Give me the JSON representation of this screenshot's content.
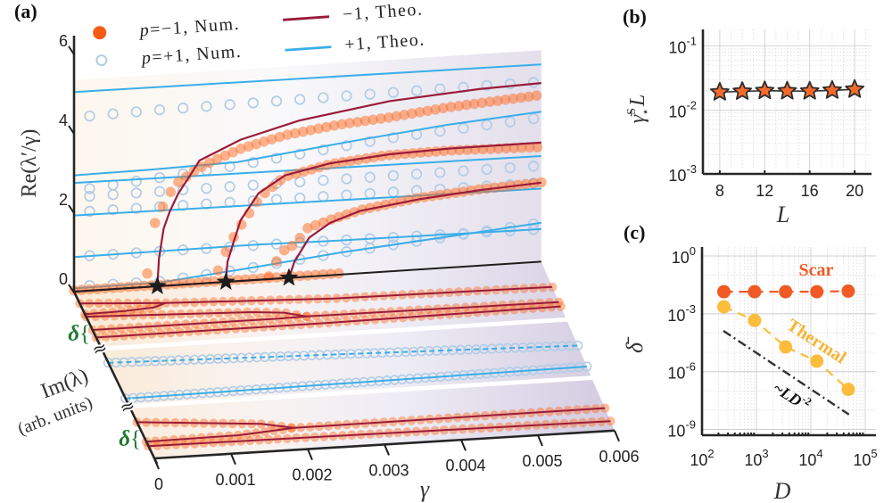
{
  "figure": {
    "panel_labels": {
      "a": "(a)",
      "b": "(b)",
      "c": "(c)"
    },
    "colors": {
      "p_minus_num": "#ff6a1f",
      "p_minus_num_legend": "#fb5a14",
      "p_plus_num": "#b3cce6",
      "p_minus_theo": "#9b1b3a",
      "p_plus_theo": "#3aaee8",
      "exceptional_point": "#1c1c1c",
      "delta": "#1f7a32",
      "star_fill": "#f36b2b",
      "scar": "#f15a24",
      "thermal": "#fbbd3b",
      "reference": "#333333"
    },
    "legend": {
      "num_minus": {
        "var": "p",
        "text": "=−1, Num."
      },
      "num_plus": {
        "var": "p",
        "text": "=+1, Num."
      },
      "theo_minus": "−1, Theo.",
      "theo_plus": "+1, Theo."
    },
    "axis_labels": {
      "a_wall_y": "Re(λ′/γ)",
      "a_floor_y": "Im(λ)",
      "a_floor_y_units": "(arb. units)",
      "a_x": "γ",
      "a_delta": "δ",
      "a_delta_brace": "{",
      "a_break": "≈",
      "b_y": {
        "base": "γ̄",
        "sup": "S",
        "sub": "⋆",
        "tail": "L"
      },
      "b_x": "L",
      "c_y": "δ̄",
      "c_x": "D"
    },
    "annotations_c": {
      "scar": "Scar",
      "thermal": "Thermal",
      "ref": {
        "prefix": "~",
        "text": "LD",
        "sup": "-2"
      }
    }
  },
  "chart_data": [
    {
      "panel": "a",
      "type": "line",
      "title": "(a)",
      "xlabel": "γ",
      "xlim": [
        0,
        0.006
      ],
      "xticks": [
        0,
        0.001,
        0.002,
        0.003,
        0.004,
        0.005,
        0.006
      ],
      "xtick_labels": [
        "0",
        "0.001",
        "0.002",
        "0.003",
        "0.004",
        "0.005",
        "0.006"
      ],
      "wall": {
        "ylabel": "Re(λ′/γ)",
        "ylim": [
          0,
          6
        ],
        "yticks": [
          0,
          2,
          4,
          6
        ],
        "ytick_labels": [
          "0",
          "2",
          "4",
          "6"
        ],
        "shaded_top": 5.33,
        "exceptional_points_gamma": [
          0.00107,
          0.00195,
          0.00276
        ],
        "theory_p_minus": [
          {
            "name": "re-zero",
            "points": [
              [
                0,
                0
              ],
              [
                0.00276,
                0
              ]
            ]
          },
          {
            "name": "ep1-branch",
            "points": [
              [
                0.00107,
                0
              ],
              [
                0.00109,
                0.69
              ],
              [
                0.00115,
                1.44
              ],
              [
                0.00123,
                1.87
              ],
              [
                0.00134,
                2.31
              ],
              [
                0.00149,
                2.74
              ],
              [
                0.00161,
                3.1
              ],
              [
                0.00214,
                3.56
              ],
              [
                0.0029,
                3.95
              ],
              [
                0.00405,
                4.29
              ],
              [
                0.0052,
                4.45
              ],
              [
                0.006,
                4.5
              ]
            ]
          },
          {
            "name": "ep2-branch",
            "points": [
              [
                0.00195,
                0
              ],
              [
                0.00197,
                0.5
              ],
              [
                0.00205,
                1.0
              ],
              [
                0.00214,
                1.53
              ],
              [
                0.00237,
                2.18
              ],
              [
                0.00271,
                2.59
              ],
              [
                0.00329,
                2.82
              ],
              [
                0.00405,
                2.95
              ],
              [
                0.00481,
                3.0
              ],
              [
                0.006,
                3.0
              ]
            ]
          },
          {
            "name": "ep3-branch",
            "points": [
              [
                0.00276,
                0
              ],
              [
                0.00283,
                0.4
              ],
              [
                0.00302,
                0.98
              ],
              [
                0.00329,
                1.32
              ],
              [
                0.00367,
                1.57
              ],
              [
                0.00443,
                1.77
              ],
              [
                0.0052,
                1.9
              ],
              [
                0.006,
                1.99
              ]
            ]
          }
        ],
        "theory_p_plus": [
          {
            "points": [
              [
                0,
                5.03
              ],
              [
                0.006,
                4.97
              ]
            ]
          },
          {
            "points": [
              [
                0,
                2.93
              ],
              [
                0.001,
                2.95
              ],
              [
                0.0021,
                3.0
              ],
              [
                0.0037,
                3.37
              ],
              [
                0.0048,
                3.6
              ],
              [
                0.006,
                3.78
              ]
            ]
          },
          {
            "points": [
              [
                0,
                2.74
              ],
              [
                0.006,
                2.66
              ]
            ]
          },
          {
            "points": [
              [
                0,
                1.92
              ],
              [
                0.006,
                1.84
              ]
            ]
          },
          {
            "points": [
              [
                0,
                0.87
              ],
              [
                0.0023,
                0.89
              ],
              [
                0.0034,
                0.86
              ],
              [
                0.006,
                0.82
              ]
            ]
          },
          {
            "points": [
              [
                0,
                0.08
              ],
              [
                0.0011,
                0.09
              ],
              [
                0.0023,
                0.32
              ],
              [
                0.0034,
                0.55
              ],
              [
                0.006,
                0.98
              ]
            ]
          }
        ],
        "num_p_minus": [
          {
            "name": "re-zero",
            "step": 0.0001,
            "points": [
              [
                0,
                0.03
              ],
              [
                0.0034,
                0.03
              ]
            ]
          },
          {
            "name": "ep1-branch",
            "step": 0.0001,
            "points": [
              [
                0.00094,
                0.34
              ],
              [
                0.00103,
                1.56
              ],
              [
                0.00113,
                1.96
              ],
              [
                0.00123,
                2.33
              ],
              [
                0.00132,
                2.57
              ],
              [
                0.00144,
                2.71
              ],
              [
                0.00155,
                2.85
              ],
              [
                0.00168,
                2.98
              ],
              [
                0.0018,
                3.08
              ],
              [
                0.00214,
                3.33
              ],
              [
                0.00271,
                3.6
              ],
              [
                0.0034,
                3.78
              ],
              [
                0.00405,
                3.88
              ],
              [
                0.00481,
                4.04
              ],
              [
                0.006,
                4.2
              ]
            ]
          },
          {
            "name": "ep2-branch",
            "step": 0.0001,
            "points": [
              [
                0.00185,
                0.3
              ],
              [
                0.00197,
                0.85
              ],
              [
                0.0021,
                1.28
              ],
              [
                0.0022,
                1.56
              ],
              [
                0.0024,
                2.1
              ],
              [
                0.0027,
                2.55
              ],
              [
                0.0033,
                2.8
              ],
              [
                0.004,
                2.93
              ],
              [
                0.0048,
                2.95
              ],
              [
                0.006,
                2.89
              ]
            ]
          },
          {
            "name": "ep3-branch",
            "step": 0.0001,
            "points": [
              [
                0.0025,
                0.07
              ],
              [
                0.0026,
                0.44
              ],
              [
                0.00268,
                0.68
              ],
              [
                0.00285,
                0.85
              ],
              [
                0.00298,
                1.21
              ],
              [
                0.0033,
                1.4
              ],
              [
                0.0037,
                1.6
              ],
              [
                0.0044,
                1.8
              ],
              [
                0.0052,
                1.92
              ],
              [
                0.006,
                2.0
              ]
            ]
          }
        ],
        "num_p_plus": [
          {
            "step": 0.0003,
            "points": [
              [
                0.0002,
                4.4
              ],
              [
                0.001,
                4.44
              ],
              [
                0.0054,
                4.53
              ],
              [
                0.006,
                4.53
              ]
            ]
          },
          {
            "step": 0.0003,
            "points": [
              [
                0.0002,
                2.57
              ],
              [
                0.002,
                2.9
              ],
              [
                0.004,
                3.35
              ],
              [
                0.006,
                3.63
              ]
            ]
          },
          {
            "step": 0.0003,
            "points": [
              [
                0.0002,
                2.38
              ],
              [
                0.006,
                2.42
              ]
            ]
          },
          {
            "step": 0.0003,
            "points": [
              [
                0.0002,
                2.0
              ],
              [
                0.006,
                1.99
              ]
            ]
          },
          {
            "step": 0.0003,
            "points": [
              [
                0.0002,
                0.88
              ],
              [
                0.003,
                0.87
              ],
              [
                0.006,
                0.82
              ]
            ]
          },
          {
            "step": 0.0003,
            "points": [
              [
                0.0002,
                0.13
              ],
              [
                0.0011,
                0.12
              ],
              [
                0.0023,
                0.32
              ],
              [
                0.0034,
                0.55
              ],
              [
                0.006,
                0.98
              ]
            ]
          }
        ]
      },
      "floor": {
        "ylabel": "Im(λ)",
        "ylabel_units": "(arb. units)",
        "im_range": [
          0,
          10
        ],
        "bands": [
          [
            0,
            3.3
          ],
          [
            3.55,
            6.75
          ],
          [
            7.0,
            10
          ]
        ],
        "axis_breaks_im": [
          3.42,
          6.87
        ],
        "num_step_p_minus": 0.00012,
        "num_step_p_plus": 0.0001,
        "theory_p_minus": [
          {
            "name": "band1-line1",
            "points": [
              [
                0,
                0.71
              ],
              [
                0.00107,
                1.0
              ],
              [
                0.0032,
                1.36
              ],
              [
                0.006,
                1.5
              ]
            ]
          },
          {
            "name": "band1-loopA-lower",
            "points": [
              [
                0,
                1.35
              ],
              [
                0.0005,
                1.32
              ],
              [
                0.0009,
                1.22
              ],
              [
                0.00107,
                1.0
              ]
            ]
          },
          {
            "name": "band1-line3",
            "points": [
              [
                0,
                1.5
              ],
              [
                0.0021,
                1.85
              ],
              [
                0.0025,
                2.0
              ],
              [
                0.00276,
                2.3
              ],
              [
                0.006,
                2.39
              ]
            ]
          },
          {
            "name": "band1-loopB-lower",
            "points": [
              [
                0,
                2.3
              ],
              [
                0.0024,
                2.32
              ],
              [
                0.00276,
                2.3
              ]
            ]
          },
          {
            "name": "band1-line5",
            "points": [
              [
                0,
                2.75
              ],
              [
                0.003,
                2.75
              ],
              [
                0.006,
                2.65
              ]
            ]
          },
          {
            "name": "band3-line1",
            "points": [
              [
                0,
                7.83
              ],
              [
                0.00156,
                8.37
              ],
              [
                0.00195,
                8.72
              ],
              [
                0.006,
                8.67
              ]
            ]
          },
          {
            "name": "band3-loop-lower",
            "points": [
              [
                0,
                9.0
              ],
              [
                0.0012,
                8.95
              ],
              [
                0.00195,
                8.72
              ]
            ]
          },
          {
            "name": "band3-line3",
            "points": [
              [
                0,
                9.26
              ],
              [
                0.006,
                9.44
              ]
            ]
          }
        ],
        "theory_p_plus": [
          {
            "name": "band2-line1",
            "style": "dashed",
            "points": [
              [
                0,
                4.27
              ],
              [
                0.006,
                4.97
              ]
            ]
          },
          {
            "name": "band2-line2",
            "style": "solid",
            "points": [
              [
                0,
                6.41
              ],
              [
                0.006,
                6.21
              ]
            ]
          }
        ]
      },
      "legend": [
        "p=−1, Num.",
        "p=+1, Num.",
        "−1, Theo.",
        "+1, Theo."
      ]
    },
    {
      "panel": "b",
      "type": "scatter",
      "title": "(b)",
      "xlabel": "L",
      "ylabel": "γ̄⋆ˢ L",
      "xlim": [
        6.5,
        21.5
      ],
      "ylim": [
        0.001,
        0.182
      ],
      "yscale": "log",
      "grid": true,
      "xticks": [
        8,
        12,
        16,
        20
      ],
      "xtick_labels": [
        "8",
        "12",
        "16",
        "20"
      ],
      "yticks": [
        0.001,
        0.01,
        0.1
      ],
      "ytick_labels": [
        {
          "base": "10",
          "exp": "-3"
        },
        {
          "base": "10",
          "exp": "-2"
        },
        {
          "base": "10",
          "exp": "-1"
        }
      ],
      "marker": "star",
      "x": [
        8,
        10,
        12,
        14,
        16,
        18,
        20
      ],
      "values": [
        0.019,
        0.0195,
        0.02,
        0.0198,
        0.0197,
        0.0203,
        0.021
      ]
    },
    {
      "panel": "c",
      "type": "line",
      "title": "(c)",
      "xlabel": "D",
      "ylabel": "δ̄",
      "xscale": "log",
      "yscale": "log",
      "xlim": [
        100,
        157000
      ],
      "ylim": [
        5e-10,
        2.9
      ],
      "grid": true,
      "xticks": [
        100,
        1000,
        10000,
        100000
      ],
      "xtick_labels": [
        {
          "base": "10",
          "exp": "2"
        },
        {
          "base": "10",
          "exp": "3"
        },
        {
          "base": "10",
          "exp": "4"
        },
        {
          "base": "10",
          "exp": "5"
        }
      ],
      "yticks": [
        1,
        0.001,
        1e-06,
        1e-09
      ],
      "ytick_labels": [
        {
          "base": "10",
          "exp": "0"
        },
        {
          "base": "10",
          "exp": "-3"
        },
        {
          "base": "10",
          "exp": "-6"
        },
        {
          "base": "10",
          "exp": "-9"
        }
      ],
      "series": [
        {
          "name": "Scar",
          "style": "dashed",
          "marker": "circle",
          "x": [
            252,
            924,
            3432,
            12870,
            48620
          ],
          "values": [
            0.014,
            0.014,
            0.014,
            0.014,
            0.015
          ]
        },
        {
          "name": "Thermal",
          "style": "dashed",
          "marker": "circle",
          "x": [
            252,
            924,
            3432,
            12870,
            48620
          ],
          "values": [
            0.0023,
            0.00045,
            1.9e-05,
            3.5e-06,
            1.2e-07
          ]
        },
        {
          "name": "~LD^-2",
          "style": "dash-dot",
          "marker": "none",
          "x": [
            247,
            50000
          ],
          "values": [
            0.00013,
            5.9e-09
          ]
        }
      ]
    }
  ]
}
